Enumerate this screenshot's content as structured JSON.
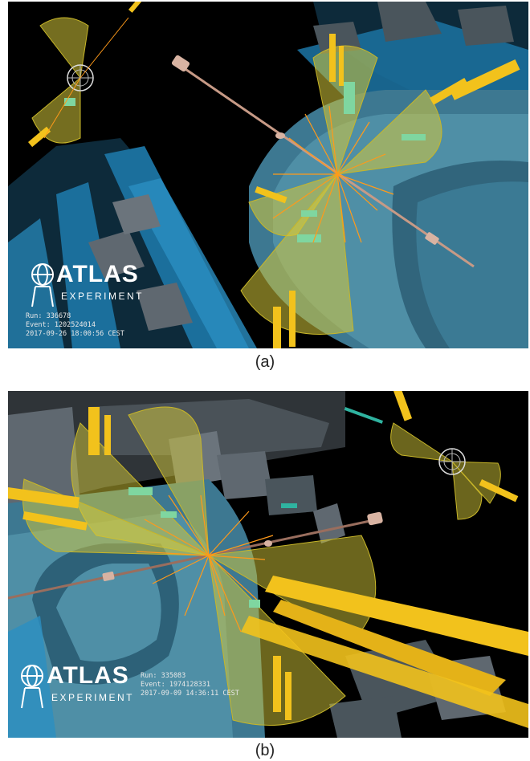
{
  "panels": [
    {
      "caption": "(a)",
      "logo": {
        "wordmark": "ATLAS",
        "subtitle": "EXPERIMENT"
      },
      "event_info": {
        "run": "Run: 336678",
        "event": "Event: 1202524014",
        "datetime": "2017-09-26 18:00:56 CEST"
      }
    },
    {
      "caption": "(b)",
      "logo": {
        "wordmark": "ATLAS",
        "subtitle": "EXPERIMENT"
      },
      "event_info": {
        "run": "Run: 335083",
        "event": "Event: 1974128331",
        "datetime": "2017-09-09 14:36:11 CEST"
      }
    }
  ],
  "colors": {
    "background": "#000000",
    "detector_blue": "#1e7fb0",
    "calorimeter_teal": "#4f8fa6",
    "muon_chamber_grey": "#5f6870",
    "jet_cone": "#d6c93a",
    "energy_deposit": "#f2c21c",
    "track_orange": "#ff9a1a",
    "track_green": "#7fd6a0",
    "beam_pipe": "#c79a86"
  }
}
